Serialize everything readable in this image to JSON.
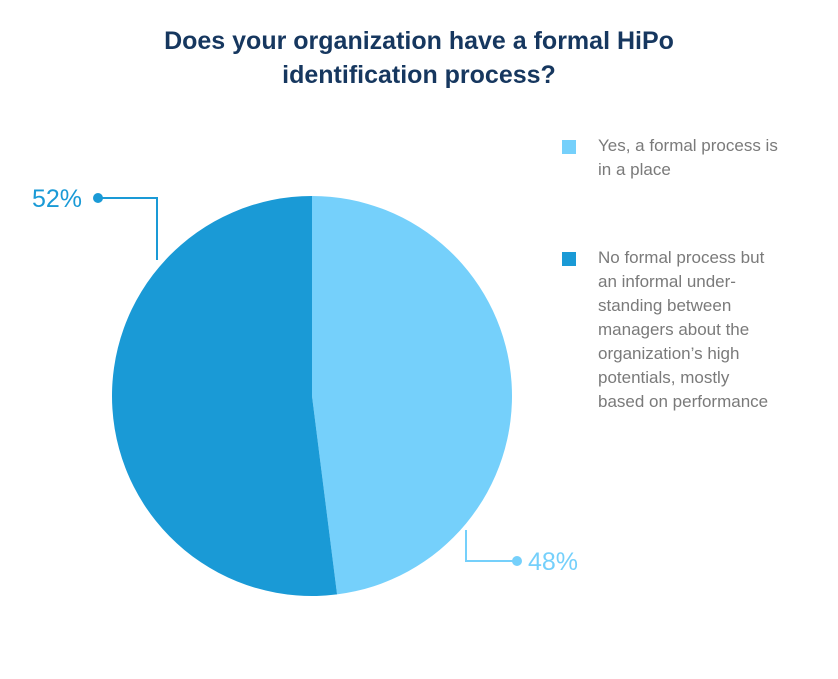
{
  "title_lines": [
    "Does your  organization have a formal HiPo",
    "identification process?"
  ],
  "colors": {
    "title": "#16375f",
    "legend_text": "#7a7a7a",
    "background": "#ffffff"
  },
  "chart_data": {
    "type": "pie",
    "title": "Does your  organization have a formal HiPo identification process?",
    "legend_position": "right",
    "slices": [
      {
        "label_lines": [
          "Yes, a formal process is",
          "in a place"
        ],
        "value": 48,
        "display": "48%",
        "color": "#75d0fb"
      },
      {
        "label_lines": [
          "No formal process but",
          "an informal under-",
          "standing between",
          "managers about the",
          "organization’s high",
          "potentials, mostly",
          "based on performance"
        ],
        "value": 52,
        "display": "52%",
        "color": "#1a9ad6"
      }
    ]
  }
}
